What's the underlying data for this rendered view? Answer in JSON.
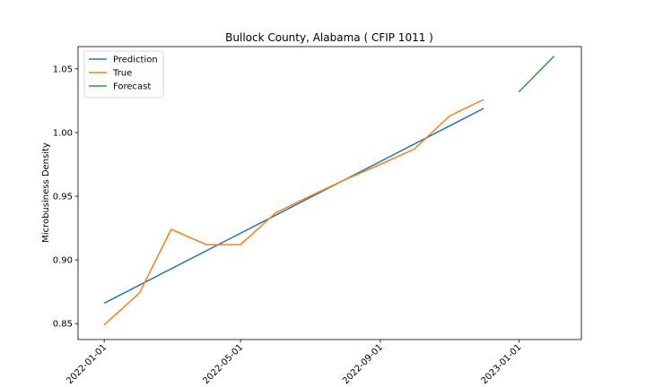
{
  "chart_data": {
    "type": "line",
    "title": "Bullock County, Alabama ( CFIP 1011 )",
    "xlabel": "",
    "ylabel": "Microbusiness Density",
    "x_is_date": true,
    "xlim": [
      "2021-12-09",
      "2023-02-25"
    ],
    "ylim": [
      0.8375,
      1.0675
    ],
    "x_ticks": [
      "2022-01-01",
      "2022-05-01",
      "2022-09-01",
      "2023-01-01"
    ],
    "y_ticks": [
      0.85,
      0.9,
      0.95,
      1.0,
      1.05
    ],
    "y_tick_labels": [
      "0.85",
      "0.90",
      "0.95",
      "1.00",
      "1.05"
    ],
    "grid": false,
    "legend_position": "upper-left",
    "series": [
      {
        "name": "Prediction",
        "color": "#1f77b4",
        "x": [
          "2022-01-01",
          "2022-12-01"
        ],
        "y": [
          0.866,
          1.019
        ]
      },
      {
        "name": "True",
        "color": "#ff7f0e",
        "x": [
          "2022-01-01",
          "2022-02-01",
          "2022-03-01",
          "2022-04-01",
          "2022-05-01",
          "2022-06-01",
          "2022-07-01",
          "2022-08-01",
          "2022-09-01",
          "2022-10-01",
          "2022-11-01",
          "2022-12-01"
        ],
        "y": [
          0.849,
          0.874,
          0.924,
          0.912,
          0.912,
          0.937,
          0.95,
          0.963,
          0.975,
          0.987,
          1.013,
          1.026
        ]
      },
      {
        "name": "Forecast",
        "color": "#2ca02c",
        "x": [
          "2023-01-01",
          "2023-02-01"
        ],
        "y": [
          1.032,
          1.06
        ]
      }
    ]
  }
}
